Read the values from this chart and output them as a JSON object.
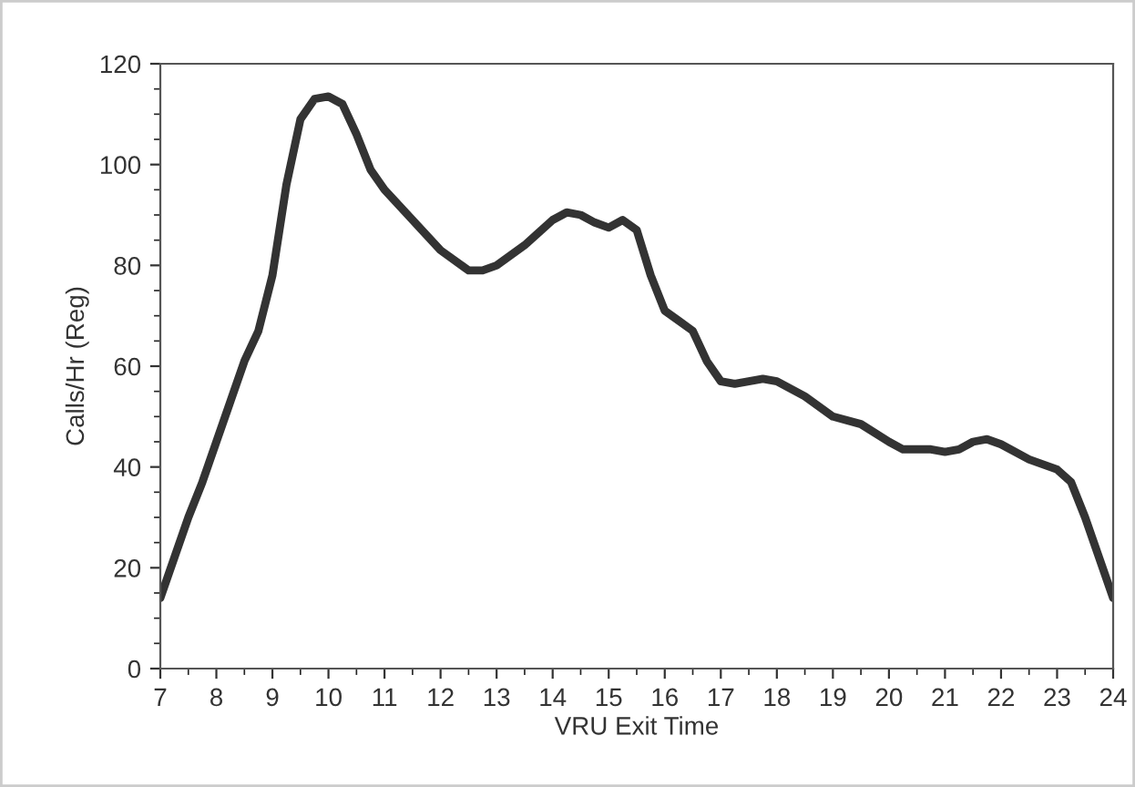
{
  "chart_data": {
    "type": "line",
    "xlabel": "VRU Exit Time",
    "ylabel": "Calls/Hr (Reg)",
    "x": [
      7,
      7.25,
      7.5,
      7.75,
      8,
      8.25,
      8.5,
      8.75,
      9,
      9.25,
      9.5,
      9.75,
      10,
      10.25,
      10.5,
      10.75,
      11,
      11.5,
      12,
      12.5,
      12.75,
      13,
      13.5,
      14,
      14.25,
      14.5,
      14.75,
      15,
      15.25,
      15.5,
      15.75,
      16,
      16.25,
      16.5,
      16.75,
      17,
      17.25,
      17.5,
      17.75,
      18,
      18.5,
      19,
      19.5,
      20,
      20.25,
      20.75,
      21,
      21.25,
      21.5,
      21.75,
      22,
      22.5,
      23,
      23.25,
      23.5,
      23.75,
      24
    ],
    "series": [
      {
        "color": "#333333",
        "values": [
          14,
          22,
          30,
          37,
          45,
          53,
          61,
          67,
          78,
          96,
          109,
          113,
          113.5,
          112,
          106,
          99,
          95,
          89,
          83,
          79,
          79,
          80,
          84,
          89,
          90.5,
          90,
          88.5,
          87.5,
          89,
          87,
          78,
          71,
          69,
          67,
          61,
          57,
          56.5,
          57,
          57.5,
          57,
          54,
          50,
          48.5,
          45,
          43.5,
          43.5,
          43,
          43.5,
          45,
          45.5,
          44.5,
          41.5,
          39.5,
          37,
          30,
          22,
          14
        ]
      }
    ],
    "xlim": [
      7,
      24
    ],
    "xticks": [
      7,
      8,
      9,
      10,
      11,
      12,
      13,
      14,
      15,
      16,
      17,
      18,
      19,
      20,
      21,
      22,
      23,
      24
    ],
    "ylim": [
      0,
      120
    ],
    "yticks": [
      0,
      20,
      40,
      60,
      80,
      100,
      120
    ],
    "grid": false,
    "marker": "none",
    "line_style": "solid"
  }
}
